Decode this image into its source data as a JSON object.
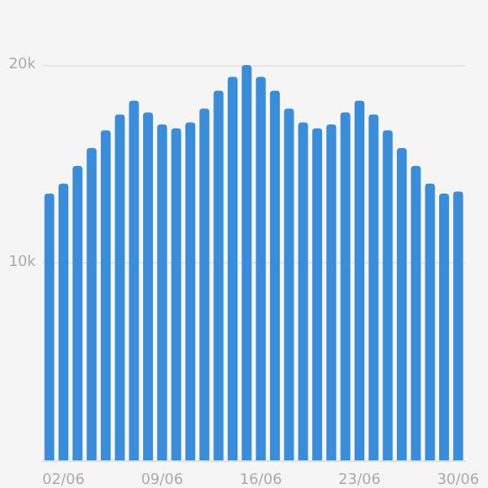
{
  "chart_data": {
    "type": "bar",
    "categories": [
      null,
      "02/06",
      null,
      null,
      null,
      null,
      null,
      null,
      "09/06",
      null,
      null,
      null,
      null,
      null,
      null,
      "16/06",
      null,
      null,
      null,
      null,
      null,
      null,
      "23/06",
      null,
      null,
      null,
      null,
      null,
      null,
      "30/06"
    ],
    "values": [
      13500,
      14000,
      14900,
      15800,
      16700,
      17500,
      18200,
      17600,
      17000,
      16800,
      17100,
      17800,
      18700,
      19400,
      20000,
      19400,
      18700,
      17800,
      17100,
      16800,
      17000,
      17600,
      18200,
      17500,
      16700,
      15800,
      14900,
      14000,
      13500,
      13600
    ],
    "color": "#3a8ddb",
    "ylim": [
      0,
      20000
    ],
    "yticks": [
      {
        "value": 10000,
        "label": "10k"
      },
      {
        "value": 20000,
        "label": "20k"
      }
    ],
    "grid": "y"
  }
}
